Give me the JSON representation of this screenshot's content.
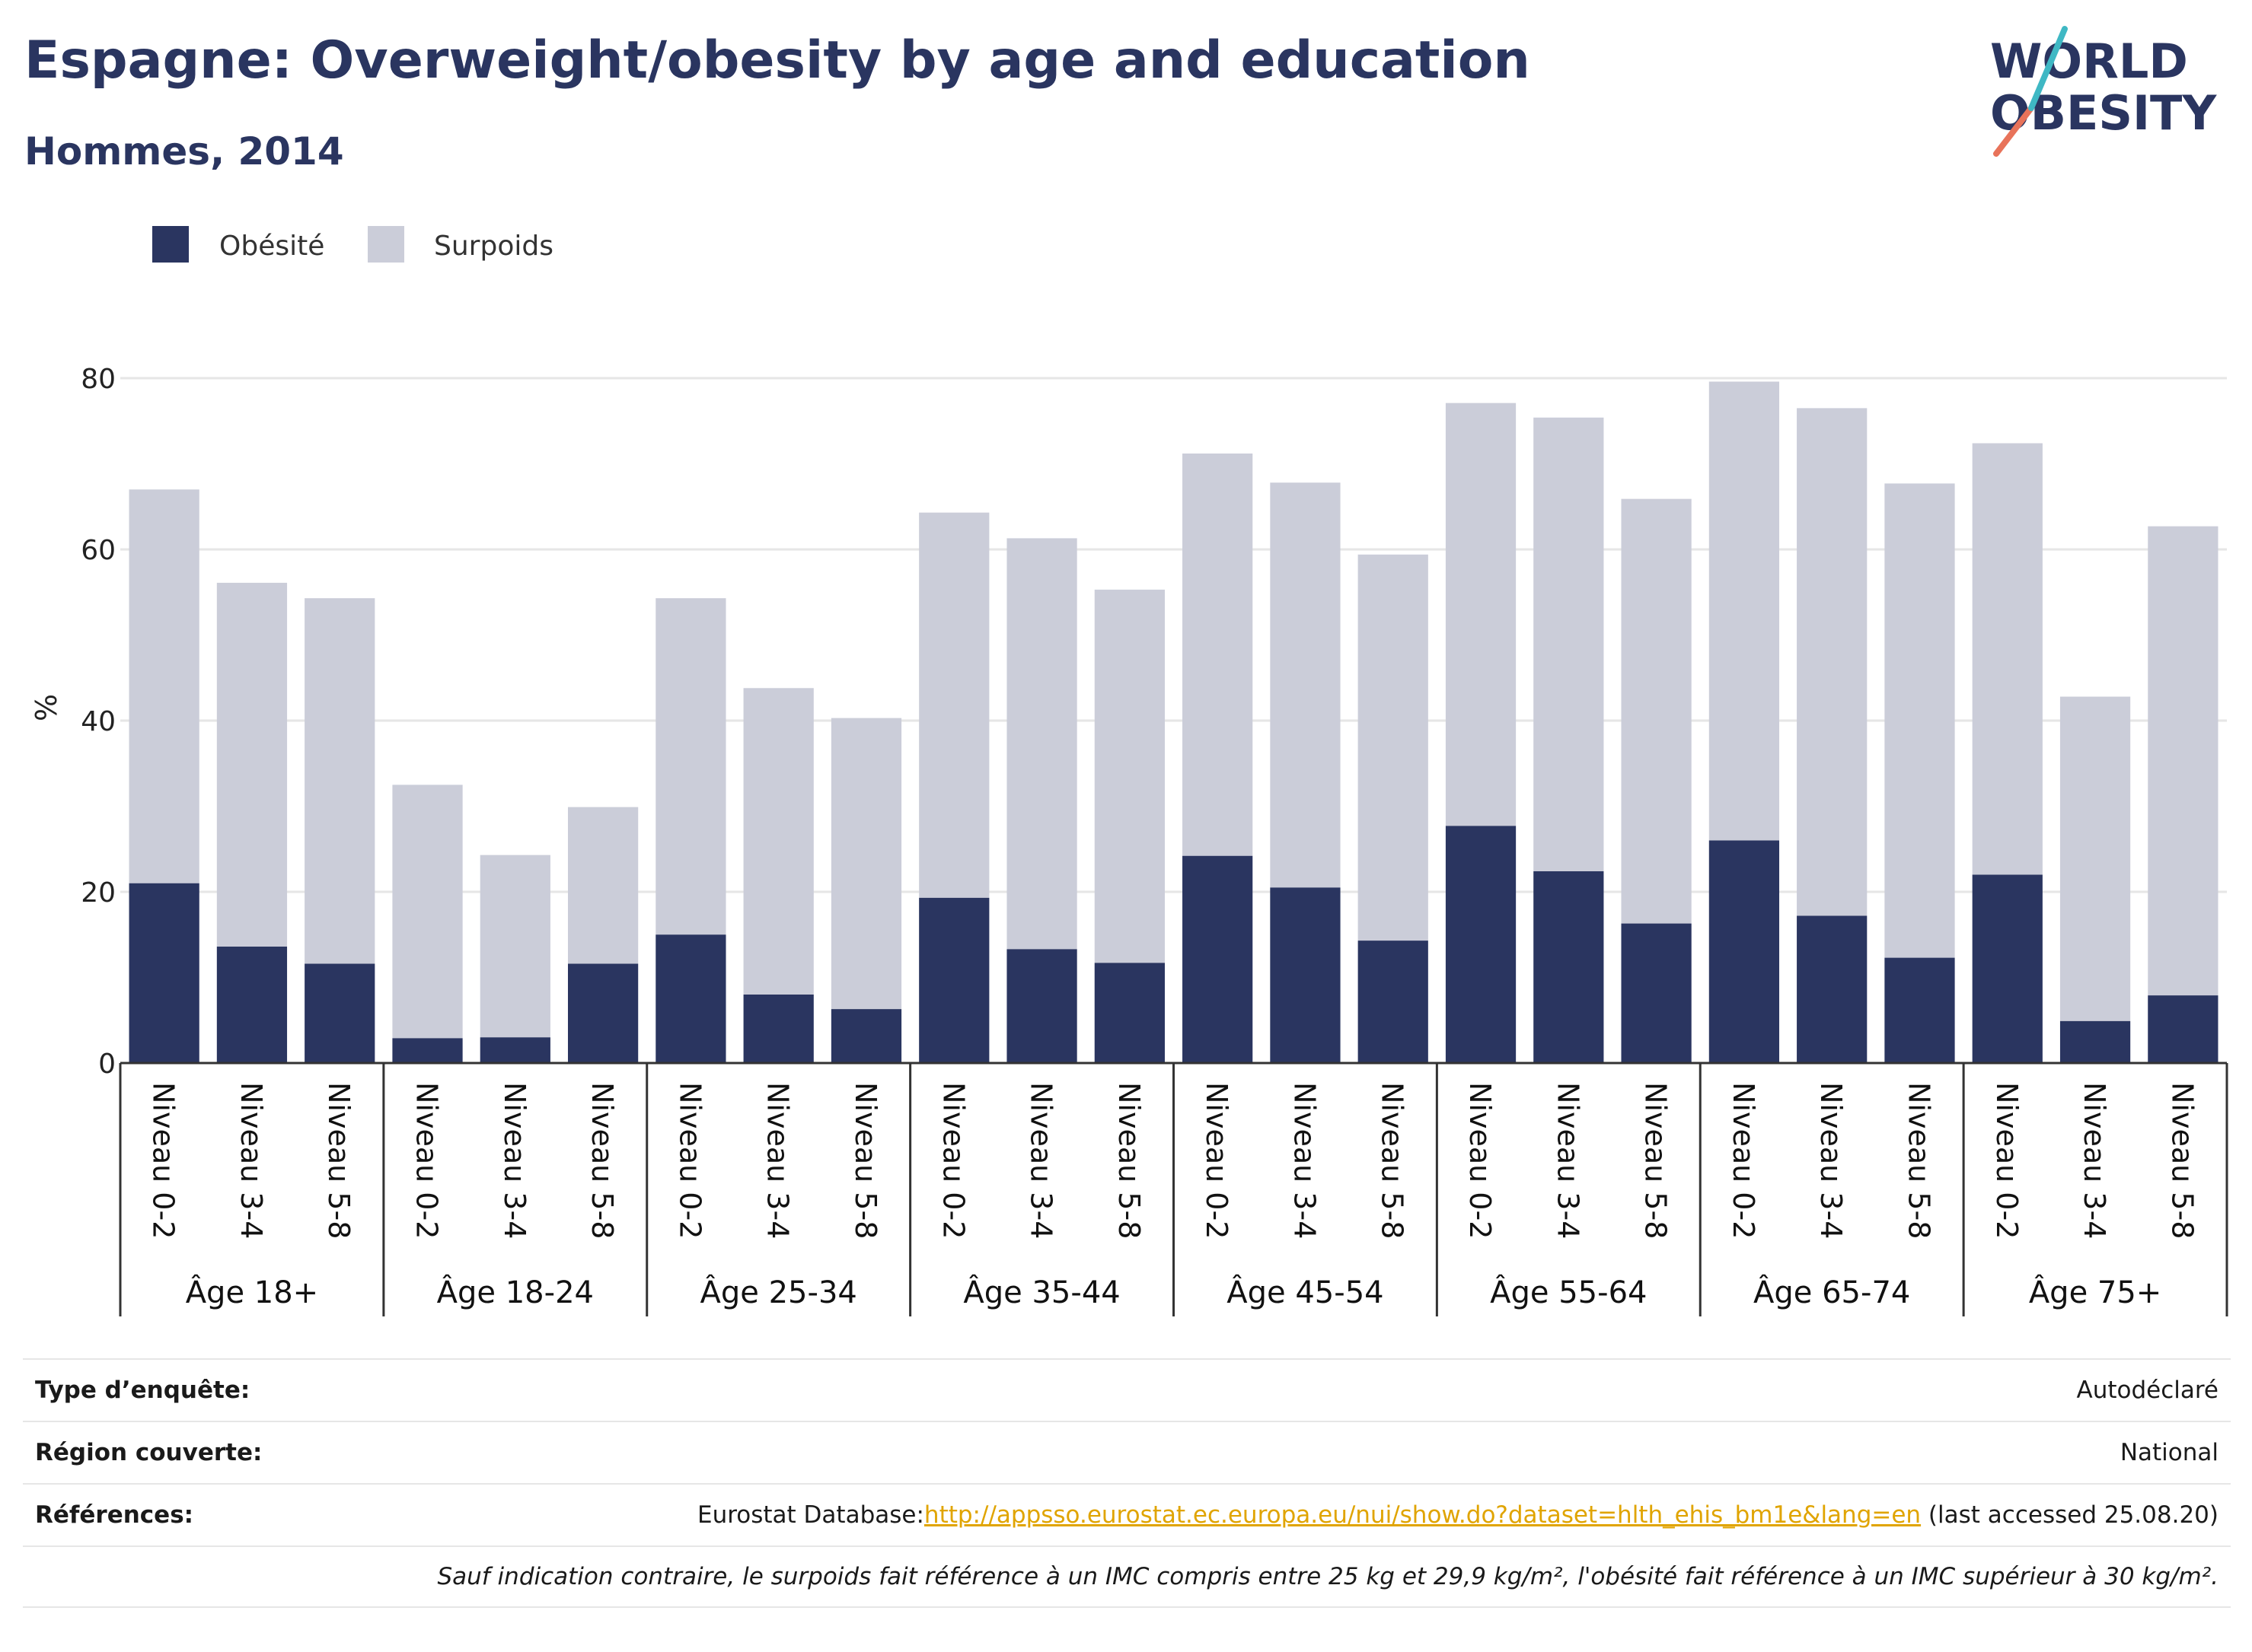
{
  "header": {
    "title": "Espagne: Overweight/obesity by age and education",
    "subtitle": "Hommes, 2014",
    "logo_line1": "WORLD",
    "logo_line2": "OBESITY"
  },
  "colors": {
    "obesity": "#2a3560",
    "overweight": "#cbcdd9",
    "grid": "#e6e6e6",
    "axis": "#333333",
    "link": "#e0a400"
  },
  "chart_data": {
    "type": "bar",
    "stacked": true,
    "ylabel": "%",
    "ylim": [
      0,
      80
    ],
    "yticks": [
      0,
      20,
      40,
      60,
      80
    ],
    "grid": true,
    "legend_position": "top-left",
    "groups": [
      "Âge 18+",
      "Âge 18-24",
      "Âge 25-34",
      "Âge 35-44",
      "Âge 45-54",
      "Âge 55-64",
      "Âge 65-74",
      "Âge 75+"
    ],
    "levels": [
      "Niveau 0-2",
      "Niveau 3-4",
      "Niveau 5-8"
    ],
    "series": [
      {
        "name": "Obésité",
        "values": [
          21.0,
          13.6,
          11.6,
          2.9,
          3.0,
          11.6,
          15.0,
          8.0,
          6.3,
          19.3,
          13.3,
          11.7,
          24.2,
          20.5,
          14.3,
          27.7,
          22.4,
          16.3,
          26.0,
          17.2,
          12.3,
          22.0,
          4.9,
          7.9
        ]
      },
      {
        "name": "Surpoids",
        "values": [
          46.0,
          42.5,
          42.7,
          29.6,
          21.3,
          18.3,
          39.3,
          35.8,
          34.0,
          45.0,
          48.0,
          43.6,
          47.0,
          47.3,
          45.1,
          49.4,
          53.0,
          49.6,
          53.6,
          59.3,
          55.4,
          50.4,
          37.9,
          54.8
        ]
      }
    ]
  },
  "info": {
    "survey_label": "Type d’enquête:",
    "survey_value": "Autodéclaré",
    "region_label": "Région couverte:",
    "region_value": "National",
    "refs_label": "Références:",
    "refs_prefix": "Eurostat Database:",
    "refs_link": "http://appsso.eurostat.ec.europa.eu/nui/show.do?dataset=hlth_ehis_bm1e&lang=en",
    "refs_suffix": " (last accessed 25.08.20)",
    "footnote": "Sauf indication contraire, le surpoids fait référence à un IMC compris entre 25 kg et 29,9 kg/m², l'obésité fait référence à un IMC supérieur à 30 kg/m²."
  }
}
